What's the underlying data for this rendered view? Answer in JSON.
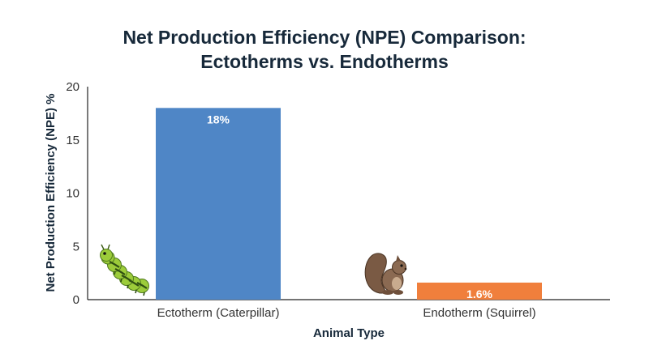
{
  "chart_data": {
    "type": "bar",
    "title_lines": [
      "Net Production Efficiency (NPE) Comparison:",
      "Ectotherms vs. Endotherms"
    ],
    "xlabel": "Animal Type",
    "ylabel": "Net Production Efficiency (NPE) %",
    "categories": [
      "Ectotherm (Caterpillar)",
      "Endotherm (Squirrel)"
    ],
    "values": [
      18,
      1.6
    ],
    "value_labels": [
      "18%",
      "1.6%"
    ],
    "bar_colors": [
      "#4f86c6",
      "#f07f3c"
    ],
    "icons": [
      "caterpillar-icon",
      "squirrel-icon"
    ],
    "ylim": [
      0,
      20
    ],
    "yticks": [
      0,
      5,
      10,
      15,
      20
    ],
    "ytick_labels": [
      "0",
      "5",
      "10",
      "15",
      "20"
    ],
    "grid": false,
    "legend": "none"
  }
}
